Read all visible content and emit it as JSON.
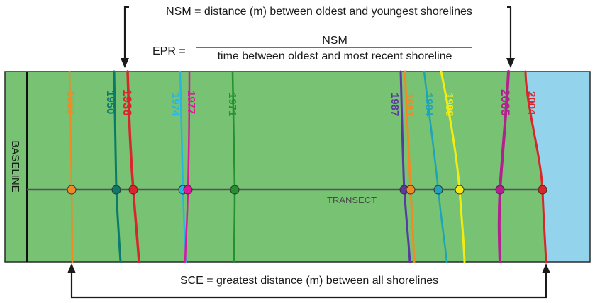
{
  "top": {
    "nsm_definition": "NSM = distance (m) between oldest and youngest shorelines",
    "epr_label": "EPR =",
    "epr_numerator": "NSM",
    "epr_denominator": "time between oldest and most recent shoreline"
  },
  "bottom": {
    "sce_definition": "SCE = greatest distance (m) between all shorelines"
  },
  "diagram": {
    "baseline_label": "BASELINE",
    "transect_label": "TRANSECT",
    "colors": {
      "land": "#77c273",
      "water": "#93d4ec",
      "frame": "#2b2b2b",
      "transect": "#555555"
    },
    "shorelines": [
      {
        "year": "1963",
        "color": "#f08a24"
      },
      {
        "year": "1950",
        "color": "#0a7a6a"
      },
      {
        "year": "1936",
        "color": "#d9262b"
      },
      {
        "year": "1974",
        "color": "#27b6e4"
      },
      {
        "year": "1977",
        "color": "#e0179a"
      },
      {
        "year": "1971",
        "color": "#22912e"
      },
      {
        "year": "1987",
        "color": "#5b3aa0"
      },
      {
        "year": "1983",
        "color": "#f08a24"
      },
      {
        "year": "1994",
        "color": "#1fa3b8"
      },
      {
        "year": "1989",
        "color": "#f4ec10"
      },
      {
        "year": "2005",
        "color": "#b3208f"
      },
      {
        "year": "2004",
        "color": "#d9262b"
      }
    ]
  }
}
